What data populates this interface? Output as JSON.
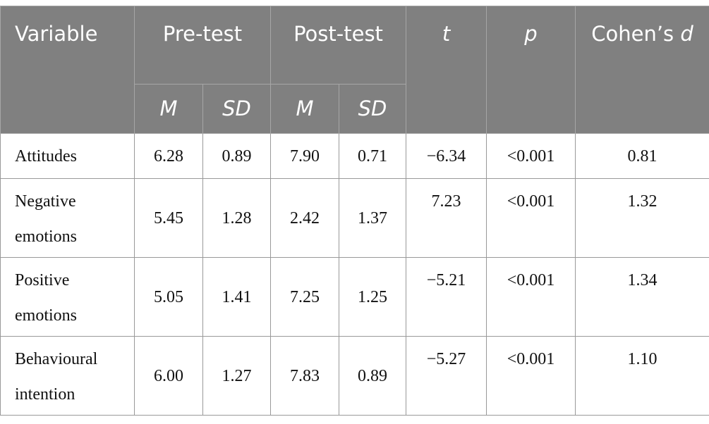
{
  "table": {
    "header": {
      "variable": "Variable",
      "pre_test": "Pre-test",
      "post_test": "Post-test",
      "t": "t",
      "p": "p",
      "effect_size": {
        "word": "Cohen’s",
        "symbol": "d"
      },
      "sub": [
        "M",
        "SD",
        "M",
        "SD"
      ]
    },
    "rows": [
      [
        "Attitudes",
        "6.28",
        "0.89",
        "7.90",
        "0.71",
        "−6.34",
        "<0.001",
        "0.81"
      ],
      [
        "Negative emotions",
        "5.45",
        "1.28",
        "2.42",
        "1.37",
        "7.23",
        "<0.001",
        "1.32"
      ],
      [
        "Positive emotions",
        "5.05",
        "1.41",
        "7.25",
        "1.25",
        "−5.21",
        "<0.001",
        "1.34"
      ],
      [
        "Behavioural intention",
        "6.00",
        "1.27",
        "7.83",
        "0.89",
        "−5.27",
        "<0.001",
        "1.10"
      ]
    ]
  }
}
